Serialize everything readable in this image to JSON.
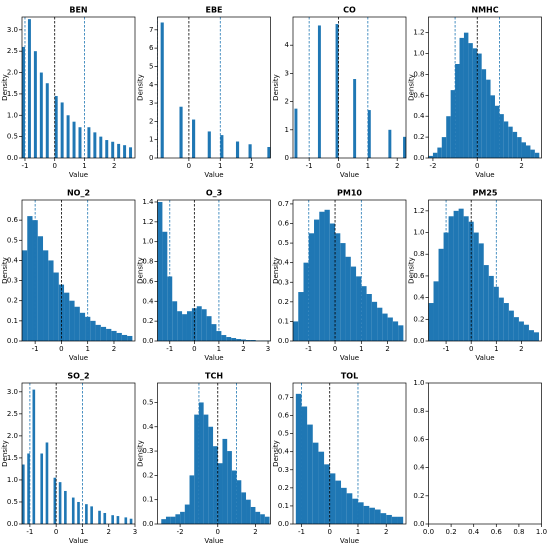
{
  "chart_data": [
    {
      "type": "histogram",
      "title": "BEN",
      "xlabel": "Value",
      "ylabel": "Density",
      "color": "#1f77b4",
      "bins": [
        -1.1,
        -1.0,
        -0.9,
        -0.8,
        -0.7,
        -0.6,
        -0.5,
        -0.4,
        -0.3,
        -0.2,
        -0.1,
        0,
        0.1,
        0.2,
        0.3,
        0.4,
        0.5,
        0.6,
        0.7,
        0.8,
        0.9,
        1.0,
        1.1,
        1.2,
        1.3,
        1.4,
        1.5,
        1.6,
        1.7,
        1.8,
        1.9,
        2.0,
        2.1,
        2.2,
        2.3,
        2.4,
        2.5,
        2.6,
        2.7
      ],
      "counts": [
        2.6,
        0,
        3.25,
        0,
        2.5,
        0,
        2.0,
        0,
        1.75,
        0,
        0,
        1.45,
        0,
        1.3,
        0,
        1.0,
        0,
        0.85,
        0,
        0.72,
        0,
        0,
        0.72,
        0,
        0.6,
        0,
        0.5,
        0,
        0.42,
        0,
        0.38,
        0,
        0.33,
        0,
        0.3,
        0,
        0.25,
        0
      ],
      "xlim": [
        -1.1,
        2.7
      ],
      "ylim": [
        0,
        3.3
      ],
      "xticks": [
        -1,
        0,
        1,
        2
      ],
      "yticks": [
        {
          "value": 0,
          "label": "0.0"
        },
        0.5,
        {
          "value": 1,
          "label": "1.0"
        },
        1.5,
        {
          "value": 2,
          "label": "2.0"
        },
        2.5,
        {
          "value": 3,
          "label": "3.0"
        }
      ],
      "vlines": [
        {
          "value": -1,
          "color": "#1f77b4"
        },
        {
          "value": 0,
          "color": "#000000"
        },
        {
          "value": 1,
          "color": "#1f77b4"
        }
      ]
    },
    {
      "type": "histogram",
      "title": "EBE",
      "xlabel": "Value",
      "ylabel": "Density",
      "color": "#1f77b4",
      "bins": [
        -1.0,
        -0.9,
        -0.8,
        -0.7,
        -0.6,
        -0.5,
        -0.4,
        -0.3,
        -0.2,
        -0.1,
        0,
        0.1,
        0.2,
        0.3,
        0.4,
        0.5,
        0.6,
        0.7,
        0.8,
        0.9,
        1.0,
        1.1,
        1.2,
        1.3,
        1.4,
        1.5,
        1.6,
        1.7,
        1.8,
        1.9,
        2.0,
        2.1,
        2.2,
        2.3,
        2.4,
        2.5,
        2.6
      ],
      "counts": [
        0,
        7.4,
        0,
        0,
        0,
        0,
        0,
        2.8,
        0,
        0,
        0,
        2.1,
        0,
        0,
        0,
        0,
        1.45,
        0,
        0,
        0,
        1.25,
        0,
        0,
        0,
        0,
        0.9,
        0,
        0,
        0,
        0.75,
        0,
        0,
        0,
        0,
        0,
        0.6
      ],
      "xlim": [
        -1.0,
        2.6
      ],
      "ylim": [
        0,
        7.7
      ],
      "xticks": [
        0,
        1,
        2
      ],
      "yticks": [
        0,
        1,
        2,
        3,
        4,
        5,
        6,
        7
      ],
      "vlines": [
        {
          "value": -1,
          "color": "#1f77b4"
        },
        {
          "value": 0,
          "color": "#000000"
        },
        {
          "value": 1,
          "color": "#1f77b4"
        }
      ]
    },
    {
      "type": "histogram",
      "title": "CO",
      "xlabel": "Value",
      "ylabel": "Density",
      "color": "#1f77b4",
      "bins": [
        -1.5,
        -1.4,
        -1.3,
        -1.2,
        -1.1,
        -1.0,
        -0.9,
        -0.8,
        -0.7,
        -0.6,
        -0.5,
        -0.4,
        -0.3,
        -0.2,
        -0.1,
        0,
        0.1,
        0.2,
        0.3,
        0.4,
        0.5,
        0.6,
        0.7,
        0.8,
        0.9,
        1.0,
        1.1,
        1.2,
        1.3,
        1.4,
        1.5,
        1.6,
        1.7,
        1.8,
        1.9,
        2.0,
        2.1,
        2.2,
        2.3
      ],
      "counts": [
        1.75,
        0,
        0,
        0,
        0,
        0,
        0,
        0,
        4.7,
        0,
        0,
        0,
        0,
        0,
        4.75,
        0,
        0,
        0,
        0,
        0,
        2.8,
        0,
        0,
        0,
        0,
        1.7,
        0,
        0,
        0,
        0,
        0,
        0,
        1.0,
        0,
        0,
        0,
        0,
        0.75
      ],
      "xlim": [
        -1.55,
        2.3
      ],
      "ylim": [
        0,
        5.0
      ],
      "xticks": [
        -1,
        0,
        1,
        2
      ],
      "yticks": [
        0,
        1,
        2,
        3,
        4
      ],
      "vlines": [
        {
          "value": -1,
          "color": "#1f77b4"
        },
        {
          "value": 0,
          "color": "#000000"
        },
        {
          "value": 1,
          "color": "#1f77b4"
        }
      ]
    },
    {
      "type": "histogram",
      "title": "NMHC",
      "xlabel": "Value",
      "ylabel": "Density",
      "color": "#1f77b4",
      "bins": [
        -2.2,
        -2.0,
        -1.8,
        -1.6,
        -1.4,
        -1.2,
        -1.0,
        -0.8,
        -0.6,
        -0.4,
        -0.2,
        0,
        0.2,
        0.4,
        0.6,
        0.8,
        1.0,
        1.2,
        1.4,
        1.6,
        1.8,
        2.0,
        2.2,
        2.4,
        2.6,
        2.8
      ],
      "counts": [
        0.02,
        0.05,
        0.1,
        0.2,
        0.4,
        0.65,
        0.9,
        1.15,
        1.2,
        1.1,
        1.05,
        1.0,
        0.85,
        0.75,
        0.6,
        0.5,
        0.42,
        0.35,
        0.3,
        0.25,
        0.2,
        0.15,
        0.12,
        0.08,
        0.05
      ],
      "xlim": [
        -2.2,
        2.9
      ],
      "ylim": [
        0,
        1.35
      ],
      "xticks": [
        -2,
        0,
        2
      ],
      "yticks": [
        {
          "value": 0,
          "label": "0.0"
        },
        0.2,
        0.4,
        0.6,
        0.8,
        {
          "value": 1,
          "label": "1.0"
        },
        1.2
      ],
      "vlines": [
        {
          "value": -1,
          "color": "#1f77b4"
        },
        {
          "value": 0,
          "color": "#000000"
        },
        {
          "value": 1,
          "color": "#1f77b4"
        }
      ]
    },
    {
      "type": "histogram",
      "title": "NO_2",
      "xlabel": "Value",
      "ylabel": "Density",
      "color": "#1f77b4",
      "bins": [
        -1.5,
        -1.3,
        -1.1,
        -0.9,
        -0.7,
        -0.5,
        -0.3,
        -0.1,
        0.1,
        0.3,
        0.5,
        0.7,
        0.9,
        1.1,
        1.3,
        1.5,
        1.7,
        1.9,
        2.1,
        2.3,
        2.5,
        2.7
      ],
      "counts": [
        0.45,
        0.62,
        0.6,
        0.52,
        0.45,
        0.4,
        0.34,
        0.28,
        0.24,
        0.2,
        0.17,
        0.14,
        0.12,
        0.1,
        0.08,
        0.07,
        0.06,
        0.05,
        0.04,
        0.03,
        0.025
      ],
      "xlim": [
        -1.5,
        2.8
      ],
      "ylim": [
        0,
        0.7
      ],
      "xticks": [
        -1,
        0,
        1,
        2
      ],
      "yticks": [
        {
          "value": 0,
          "label": "0.0"
        },
        0.1,
        0.2,
        0.3,
        0.4,
        0.5,
        0.6
      ],
      "vlines": [
        {
          "value": -1,
          "color": "#1f77b4"
        },
        {
          "value": 0,
          "color": "#000000"
        },
        {
          "value": 1,
          "color": "#1f77b4"
        }
      ]
    },
    {
      "type": "histogram",
      "title": "O_3",
      "xlabel": "Value",
      "ylabel": "Density",
      "color": "#1f77b4",
      "bins": [
        -1.5,
        -1.3,
        -1.1,
        -0.9,
        -0.7,
        -0.5,
        -0.3,
        -0.1,
        0.1,
        0.3,
        0.5,
        0.7,
        0.9,
        1.1,
        1.3,
        1.5,
        1.7,
        1.9,
        2.1,
        2.3,
        2.5,
        2.7,
        2.9,
        3.1
      ],
      "counts": [
        1.4,
        1.1,
        0.65,
        0.4,
        0.3,
        0.27,
        0.3,
        0.33,
        0.35,
        0.32,
        0.25,
        0.17,
        0.1,
        0.06,
        0.04,
        0.03,
        0.02,
        0.015,
        0.01,
        0.01,
        0.005,
        0.005,
        0.005
      ],
      "xlim": [
        -1.5,
        3.1
      ],
      "ylim": [
        0,
        1.42
      ],
      "xticks": [
        -1,
        0,
        1,
        2,
        3
      ],
      "yticks": [
        {
          "value": 0,
          "label": "0.0"
        },
        0.2,
        0.4,
        0.6,
        0.8,
        {
          "value": 1,
          "label": "1.0"
        },
        1.2,
        1.4
      ],
      "vlines": [
        {
          "value": -1,
          "color": "#1f77b4"
        },
        {
          "value": 0,
          "color": "#000000"
        },
        {
          "value": 1,
          "color": "#1f77b4"
        }
      ]
    },
    {
      "type": "histogram",
      "title": "PM10",
      "xlabel": "Value",
      "ylabel": "Density",
      "color": "#1f77b4",
      "bins": [
        -1.6,
        -1.4,
        -1.2,
        -1.0,
        -0.8,
        -0.6,
        -0.4,
        -0.2,
        0,
        0.2,
        0.4,
        0.6,
        0.8,
        1.0,
        1.2,
        1.4,
        1.6,
        1.8,
        2.0,
        2.2,
        2.4,
        2.6
      ],
      "counts": [
        0.1,
        0.25,
        0.4,
        0.55,
        0.62,
        0.66,
        0.67,
        0.6,
        0.55,
        0.5,
        0.43,
        0.38,
        0.33,
        0.28,
        0.24,
        0.2,
        0.17,
        0.14,
        0.12,
        0.1,
        0.08
      ],
      "xlim": [
        -1.6,
        2.7
      ],
      "ylim": [
        0,
        0.72
      ],
      "xticks": [
        -1,
        0,
        1,
        2
      ],
      "yticks": [
        {
          "value": 0,
          "label": "0.0"
        },
        0.1,
        0.2,
        0.3,
        0.4,
        0.5,
        0.6,
        0.7
      ],
      "vlines": [
        {
          "value": -1,
          "color": "#1f77b4"
        },
        {
          "value": 0,
          "color": "#000000"
        },
        {
          "value": 1,
          "color": "#1f77b4"
        }
      ]
    },
    {
      "type": "histogram",
      "title": "PM25",
      "xlabel": "Value",
      "ylabel": "Density",
      "color": "#1f77b4",
      "bins": [
        -1.7,
        -1.5,
        -1.3,
        -1.1,
        -0.9,
        -0.7,
        -0.5,
        -0.3,
        -0.1,
        0.1,
        0.3,
        0.5,
        0.7,
        0.9,
        1.1,
        1.3,
        1.5,
        1.7,
        1.9,
        2.1,
        2.3,
        2.5,
        2.7
      ],
      "counts": [
        0.35,
        0.55,
        0.85,
        1.0,
        1.15,
        1.2,
        1.22,
        1.15,
        1.1,
        1.0,
        0.9,
        0.7,
        0.6,
        0.5,
        0.4,
        0.35,
        0.28,
        0.22,
        0.18,
        0.15,
        0.1,
        0.08
      ],
      "xlim": [
        -1.7,
        2.8
      ],
      "ylim": [
        0,
        1.3
      ],
      "xticks": [
        -1,
        0,
        1,
        2
      ],
      "yticks": [
        {
          "value": 0,
          "label": "0.0"
        },
        0.2,
        0.4,
        0.6,
        0.8,
        {
          "value": 1,
          "label": "1.0"
        },
        1.2
      ],
      "vlines": [
        {
          "value": -1,
          "color": "#1f77b4"
        },
        {
          "value": 0,
          "color": "#000000"
        },
        {
          "value": 1,
          "color": "#1f77b4"
        }
      ]
    },
    {
      "type": "histogram",
      "title": "SO_2",
      "xlabel": "Value",
      "ylabel": "Density",
      "color": "#1f77b4",
      "bins": [
        -1.3,
        -1.2,
        -1.1,
        -1.0,
        -0.9,
        -0.8,
        -0.7,
        -0.6,
        -0.5,
        -0.4,
        -0.3,
        -0.2,
        -0.1,
        0,
        0.1,
        0.2,
        0.3,
        0.4,
        0.5,
        0.6,
        0.7,
        0.8,
        0.9,
        1.0,
        1.1,
        1.2,
        1.3,
        1.4,
        1.5,
        1.6,
        1.7,
        1.8,
        1.9,
        2.0,
        2.1,
        2.2,
        2.3,
        2.4,
        2.5,
        2.6,
        2.7,
        2.8,
        2.9,
        3.0
      ],
      "counts": [
        1.35,
        0,
        1.6,
        0,
        3.05,
        0,
        0,
        1.6,
        0,
        1.85,
        0,
        0,
        1.05,
        0,
        0.95,
        0,
        0.75,
        0,
        0,
        0.6,
        0,
        0.5,
        0,
        0,
        0.45,
        0,
        0.4,
        0,
        0,
        0.3,
        0,
        0.25,
        0,
        0,
        0.2,
        0,
        0.18,
        0,
        0,
        0.15,
        0,
        0.12,
        0
      ],
      "xlim": [
        -1.3,
        3.0
      ],
      "ylim": [
        0,
        3.2
      ],
      "xticks": [
        -1,
        0,
        1,
        2,
        3
      ],
      "yticks": [
        {
          "value": 0,
          "label": "0.0"
        },
        0.5,
        {
          "value": 1,
          "label": "1.0"
        },
        1.5,
        {
          "value": 2,
          "label": "2.0"
        },
        2.5,
        {
          "value": 3,
          "label": "3.0"
        }
      ],
      "vlines": [
        {
          "value": -1,
          "color": "#1f77b4"
        },
        {
          "value": 0,
          "color": "#000000"
        },
        {
          "value": 1,
          "color": "#1f77b4"
        }
      ]
    },
    {
      "type": "histogram",
      "title": "TCH",
      "xlabel": "Value",
      "ylabel": "Density",
      "color": "#1f77b4",
      "bins": [
        -3.0,
        -2.75,
        -2.5,
        -2.25,
        -2.0,
        -1.75,
        -1.5,
        -1.25,
        -1.0,
        -0.75,
        -0.5,
        -0.25,
        0,
        0.25,
        0.5,
        0.75,
        1.0,
        1.25,
        1.5,
        1.75,
        2.0,
        2.25,
        2.5,
        2.75
      ],
      "counts": [
        0.02,
        0.03,
        0.03,
        0.04,
        0.05,
        0.08,
        0.2,
        0.45,
        0.5,
        0.45,
        0.4,
        0.32,
        0.25,
        0.35,
        0.3,
        0.22,
        0.18,
        0.13,
        0.1,
        0.07,
        0.05,
        0.04,
        0.03
      ],
      "xlim": [
        -3.2,
        2.8
      ],
      "ylim": [
        0,
        0.58
      ],
      "xticks": [
        -2,
        0,
        2
      ],
      "yticks": [
        {
          "value": 0,
          "label": "0.0"
        },
        0.1,
        0.2,
        0.3,
        0.4,
        0.5
      ],
      "vlines": [
        {
          "value": -1,
          "color": "#1f77b4"
        },
        {
          "value": 0,
          "color": "#000000"
        },
        {
          "value": 1,
          "color": "#1f77b4"
        }
      ]
    },
    {
      "type": "histogram",
      "title": "TOL",
      "xlabel": "Value",
      "ylabel": "Density",
      "color": "#1f77b4",
      "bins": [
        -1.2,
        -1.0,
        -0.8,
        -0.6,
        -0.4,
        -0.2,
        0,
        0.2,
        0.4,
        0.6,
        0.8,
        1.0,
        1.2,
        1.4,
        1.6,
        1.8,
        2.0,
        2.2,
        2.4,
        2.6
      ],
      "counts": [
        0.72,
        0.65,
        0.55,
        0.45,
        0.4,
        0.33,
        0.28,
        0.24,
        0.2,
        0.17,
        0.14,
        0.12,
        0.1,
        0.09,
        0.08,
        0.06,
        0.05,
        0.04,
        0.04
      ],
      "xlim": [
        -1.3,
        2.7
      ],
      "ylim": [
        0,
        0.78
      ],
      "xticks": [
        -1,
        0,
        1,
        2
      ],
      "yticks": [
        {
          "value": 0,
          "label": "0.0"
        },
        0.1,
        0.2,
        0.3,
        0.4,
        0.5,
        0.6,
        0.7
      ],
      "vlines": [
        {
          "value": -1,
          "color": "#1f77b4"
        },
        {
          "value": 0,
          "color": "#000000"
        },
        {
          "value": 1,
          "color": "#1f77b4"
        }
      ]
    },
    {
      "type": "blank",
      "xlim": [
        0,
        1
      ],
      "ylim": [
        0,
        1
      ],
      "xticks": [
        {
          "value": 0,
          "label": "0.0"
        },
        0.2,
        0.4,
        0.6,
        0.8,
        {
          "value": 1,
          "label": "1.0"
        }
      ],
      "yticks": [
        {
          "value": 0,
          "label": "0.0"
        },
        0.2,
        0.4,
        0.6,
        0.8,
        {
          "value": 1,
          "label": "1.0"
        }
      ]
    }
  ]
}
